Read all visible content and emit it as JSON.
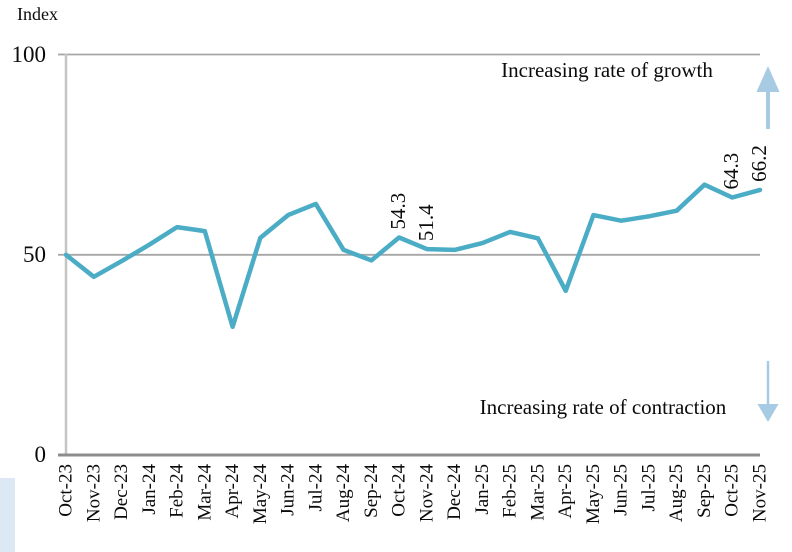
{
  "chart_data": {
    "type": "line",
    "title": "",
    "ylabel": "Index",
    "xlabel": "",
    "ylim": [
      0,
      100
    ],
    "yticks": [
      0,
      50,
      100
    ],
    "grid": "horizontal",
    "legend": "none",
    "categories": [
      "Oct-23",
      "Nov-23",
      "Dec-23",
      "Jan-24",
      "Feb-24",
      "Mar-24",
      "Apr-24",
      "May-24",
      "Jun-24",
      "Jul-24",
      "Aug-24",
      "Sep-24",
      "Oct-24",
      "Nov-24",
      "Dec-24",
      "Jan-25",
      "Feb-25",
      "Mar-25",
      "Apr-25",
      "May-25",
      "Jun-25",
      "Jul-25",
      "Aug-25",
      "Sep-25",
      "Oct-25",
      "Nov-25"
    ],
    "series": [
      {
        "name": "Index",
        "color": "#4BACC6",
        "values": [
          50.0,
          44.5,
          48.4,
          52.5,
          56.9,
          55.9,
          32.0,
          54.2,
          59.9,
          62.7,
          51.2,
          48.6,
          54.3,
          51.4,
          51.2,
          52.9,
          55.7,
          54.1,
          41.0,
          59.9,
          58.5,
          59.6,
          61.0,
          67.5,
          64.3,
          66.2
        ]
      }
    ],
    "annotations": [
      {
        "category": "Oct-24",
        "label": "54.3"
      },
      {
        "category": "Nov-24",
        "label": "51.4"
      },
      {
        "category": "Oct-25",
        "label": "64.3"
      },
      {
        "category": "Nov-25",
        "label": "66.2"
      }
    ],
    "texts": {
      "growth": "Increasing rate of growth",
      "contraction": "Increasing rate of contraction"
    }
  },
  "colors": {
    "line": "#4BACC6",
    "arrow": "#A6CBE3",
    "grid": "#A6A6A6",
    "axis": "#8C8C8C",
    "yaxis": "#C4C4C4",
    "corner_strip": "#DCE9F5"
  }
}
